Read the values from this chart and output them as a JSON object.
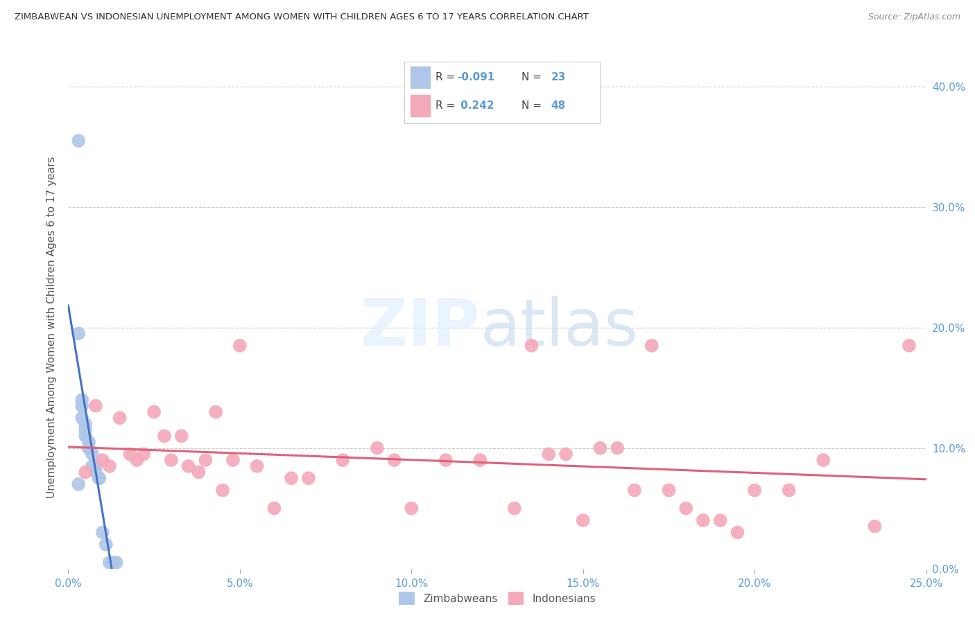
{
  "title": "ZIMBABWEAN VS INDONESIAN UNEMPLOYMENT AMONG WOMEN WITH CHILDREN AGES 6 TO 17 YEARS CORRELATION CHART",
  "source": "Source: ZipAtlas.com",
  "ylabel": "Unemployment Among Women with Children Ages 6 to 17 years",
  "xlabel_ticks": [
    "0.0%",
    "5.0%",
    "10.0%",
    "15.0%",
    "20.0%",
    "25.0%"
  ],
  "xlabel_vals": [
    0.0,
    0.05,
    0.1,
    0.15,
    0.2,
    0.25
  ],
  "ylabel_ticks_right": [
    "0.0%",
    "10.0%",
    "20.0%",
    "30.0%",
    "40.0%"
  ],
  "ylabel_vals": [
    0.0,
    0.1,
    0.2,
    0.3,
    0.4
  ],
  "xlim": [
    0.0,
    0.25
  ],
  "ylim": [
    0.0,
    0.4
  ],
  "zim_color": "#aec6e8",
  "ind_color": "#f4a8b8",
  "zim_line_color": "#4472c4",
  "ind_line_color": "#e0607a",
  "zim_dashed_color": "#b0c8e8",
  "legend_bottom_zim": "Zimbabweans",
  "legend_bottom_ind": "Indonesians",
  "zim_R": "-0.091",
  "zim_N": "23",
  "ind_R": "0.242",
  "ind_N": "48",
  "zim_x": [
    0.003,
    0.003,
    0.004,
    0.004,
    0.005,
    0.005,
    0.005,
    0.006,
    0.006,
    0.006,
    0.007,
    0.007,
    0.008,
    0.008,
    0.009,
    0.009,
    0.01,
    0.011,
    0.012,
    0.013,
    0.014,
    0.003,
    0.004
  ],
  "zim_y": [
    0.355,
    0.195,
    0.135,
    0.125,
    0.12,
    0.115,
    0.11,
    0.105,
    0.1,
    0.1,
    0.095,
    0.085,
    0.085,
    0.08,
    0.075,
    0.075,
    0.03,
    0.02,
    0.005,
    0.005,
    0.005,
    0.07,
    0.14
  ],
  "ind_x": [
    0.005,
    0.008,
    0.01,
    0.012,
    0.015,
    0.018,
    0.02,
    0.022,
    0.025,
    0.028,
    0.03,
    0.033,
    0.035,
    0.038,
    0.04,
    0.043,
    0.045,
    0.048,
    0.05,
    0.055,
    0.06,
    0.065,
    0.07,
    0.08,
    0.09,
    0.095,
    0.1,
    0.11,
    0.12,
    0.13,
    0.135,
    0.14,
    0.145,
    0.15,
    0.155,
    0.16,
    0.165,
    0.17,
    0.175,
    0.18,
    0.185,
    0.19,
    0.195,
    0.2,
    0.21,
    0.22,
    0.235,
    0.245
  ],
  "ind_y": [
    0.08,
    0.135,
    0.09,
    0.085,
    0.125,
    0.095,
    0.09,
    0.095,
    0.13,
    0.11,
    0.09,
    0.11,
    0.085,
    0.08,
    0.09,
    0.13,
    0.065,
    0.09,
    0.185,
    0.085,
    0.05,
    0.075,
    0.075,
    0.09,
    0.1,
    0.09,
    0.05,
    0.09,
    0.09,
    0.05,
    0.185,
    0.095,
    0.095,
    0.04,
    0.1,
    0.1,
    0.065,
    0.185,
    0.065,
    0.05,
    0.04,
    0.04,
    0.03,
    0.065,
    0.065,
    0.09,
    0.035,
    0.185
  ]
}
